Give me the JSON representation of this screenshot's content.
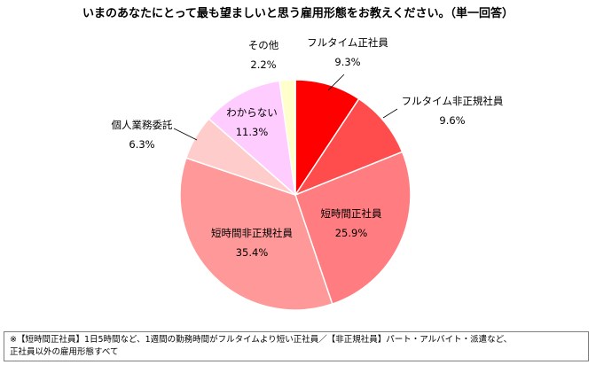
{
  "title": "いまのあなたにとって最も望ましいと思う雇用形態をお教えください。（単一回答）",
  "chart_data": {
    "type": "pie",
    "start": "12 o'clock",
    "direction": "clockwise",
    "slices": [
      {
        "label": "フルタイム正社員",
        "value": 9.3,
        "value_label": "9.3%",
        "color": "#ff0000"
      },
      {
        "label": "フルタイム非正規社員",
        "value": 9.6,
        "value_label": "9.6%",
        "color": "#ff4d4d"
      },
      {
        "label": "短時間正社員",
        "value": 25.9,
        "value_label": "25.9%",
        "color": "#ff7c80"
      },
      {
        "label": "短時間非正規社員",
        "value": 35.4,
        "value_label": "35.4%",
        "color": "#ff9999"
      },
      {
        "label": "個人業務委託",
        "value": 6.3,
        "value_label": "6.3%",
        "color": "#ffcccc"
      },
      {
        "label": "わからない",
        "value": 11.3,
        "value_label": "11.3%",
        "color": "#ffccff"
      },
      {
        "label": "その他",
        "value": 2.2,
        "value_label": "2.2%",
        "color": "#ffffcc"
      }
    ]
  },
  "footnote": {
    "line1": "※【短時間正社員】1日5時間など、1週間の勤務時間がフルタイムより短い正社員／【非正規社員】パート・アルバイト・派遣など、",
    "line2": "正社員以外の雇用形態すべて"
  }
}
